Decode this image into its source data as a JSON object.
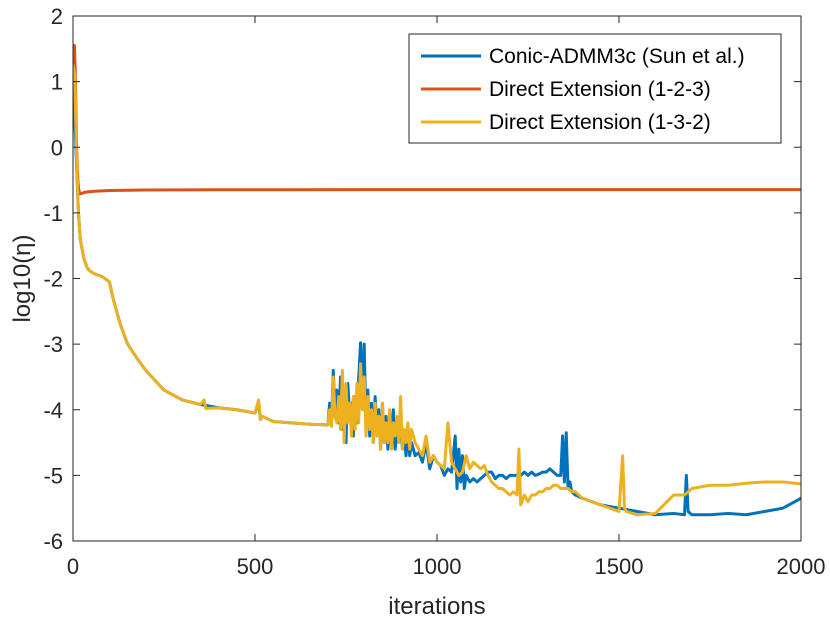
{
  "chart_data": {
    "type": "line",
    "title": "",
    "xlabel": "iterations",
    "ylabel": "log10(η)",
    "xlim": [
      0,
      2000
    ],
    "ylim": [
      -6,
      2
    ],
    "xticks": [
      0,
      500,
      1000,
      1500,
      2000
    ],
    "xtick_labels": [
      "0",
      "500",
      "1000",
      "1500",
      "2000"
    ],
    "yticks": [
      2,
      1,
      0,
      -1,
      -2,
      -3,
      -4,
      -5,
      -6
    ],
    "ytick_labels": [
      "2",
      "1",
      "0",
      "-1",
      "-2",
      "-3",
      "-4",
      "-5",
      "-6"
    ],
    "grid": false,
    "legend_position": "top-right",
    "series": [
      {
        "name": "Conic-ADMM3c (Sun et al.)",
        "color": "#0072BD",
        "x": [
          0,
          5,
          10,
          15,
          20,
          30,
          40,
          50,
          60,
          80,
          100,
          110,
          130,
          150,
          180,
          200,
          250,
          300,
          350,
          400,
          450,
          500,
          510,
          515,
          520,
          550,
          600,
          650,
          700,
          705,
          710,
          715,
          720,
          725,
          730,
          735,
          740,
          745,
          750,
          755,
          760,
          765,
          770,
          775,
          780,
          785,
          790,
          795,
          800,
          805,
          810,
          815,
          820,
          825,
          830,
          835,
          840,
          845,
          850,
          855,
          860,
          865,
          870,
          875,
          880,
          885,
          890,
          895,
          900,
          905,
          910,
          915,
          920,
          925,
          930,
          940,
          950,
          960,
          970,
          980,
          990,
          1000,
          1010,
          1020,
          1030,
          1040,
          1050,
          1055,
          1060,
          1065,
          1070,
          1075,
          1080,
          1090,
          1100,
          1110,
          1120,
          1130,
          1140,
          1150,
          1160,
          1170,
          1180,
          1190,
          1200,
          1210,
          1220,
          1230,
          1240,
          1250,
          1260,
          1270,
          1280,
          1290,
          1300,
          1310,
          1320,
          1330,
          1340,
          1345,
          1350,
          1355,
          1360,
          1365,
          1370,
          1380,
          1400,
          1450,
          1500,
          1550,
          1600,
          1650,
          1680,
          1685,
          1690,
          1700,
          1750,
          1800,
          1850,
          1900,
          1950,
          2000
        ],
        "y": [
          1.3,
          0.4,
          -0.3,
          -1.0,
          -1.4,
          -1.7,
          -1.85,
          -1.9,
          -1.93,
          -1.97,
          -2.05,
          -2.3,
          -2.7,
          -3.0,
          -3.25,
          -3.4,
          -3.7,
          -3.85,
          -3.92,
          -3.97,
          -4.0,
          -4.05,
          -3.9,
          -4.15,
          -4.1,
          -4.18,
          -4.2,
          -4.22,
          -4.23,
          -3.9,
          -4.25,
          -3.4,
          -4.1,
          -3.7,
          -4.2,
          -3.5,
          -4.3,
          -3.8,
          -4.5,
          -3.6,
          -4.1,
          -3.9,
          -4.4,
          -3.8,
          -4.2,
          -3.5,
          -2.98,
          -3.8,
          -3.0,
          -4.3,
          -3.7,
          -4.4,
          -3.9,
          -4.5,
          -3.8,
          -4.3,
          -4.0,
          -4.6,
          -3.9,
          -4.5,
          -4.1,
          -4.6,
          -4.2,
          -4.5,
          -4.0,
          -4.6,
          -4.3,
          -4.5,
          -4.2,
          -4.6,
          -4.4,
          -4.7,
          -4.3,
          -4.7,
          -4.5,
          -4.7,
          -4.65,
          -4.8,
          -4.5,
          -4.9,
          -4.7,
          -4.8,
          -4.85,
          -5.0,
          -4.9,
          -4.95,
          -4.4,
          -5.2,
          -4.6,
          -5.1,
          -4.7,
          -5.2,
          -5.0,
          -5.1,
          -5.05,
          -5.1,
          -5.05,
          -5.0,
          -4.95,
          -4.95,
          -5.05,
          -5.0,
          -5.0,
          -5.05,
          -5.0,
          -5.0,
          -5.0,
          -5.0,
          -4.95,
          -5.0,
          -4.95,
          -5.0,
          -4.98,
          -4.95,
          -4.95,
          -4.9,
          -4.95,
          -5.0,
          -5.0,
          -4.4,
          -5.1,
          -4.35,
          -5.2,
          -5.1,
          -5.25,
          -5.3,
          -5.35,
          -5.45,
          -5.5,
          -5.55,
          -5.6,
          -5.58,
          -5.6,
          -5.0,
          -5.55,
          -5.6,
          -5.6,
          -5.58,
          -5.6,
          -5.55,
          -5.5,
          -5.35
        ]
      },
      {
        "name": "Direct Extension (1-2-3)",
        "color": "#D95319",
        "x": [
          0,
          2,
          4,
          6,
          8,
          10,
          12,
          14,
          16,
          18,
          20,
          25,
          30,
          40,
          60,
          100,
          150,
          200,
          300,
          400,
          600,
          800,
          1000,
          1200,
          1400,
          1600,
          1800,
          2000
        ],
        "y": [
          1.25,
          1.5,
          1.55,
          1.2,
          0.6,
          0.0,
          -0.35,
          -0.55,
          -0.65,
          -0.7,
          -0.71,
          -0.7,
          -0.69,
          -0.68,
          -0.67,
          -0.66,
          -0.655,
          -0.652,
          -0.65,
          -0.648,
          -0.647,
          -0.646,
          -0.645,
          -0.645,
          -0.645,
          -0.645,
          -0.645,
          -0.645
        ]
      },
      {
        "name": "Direct Extension (1-3-2)",
        "color": "#EDB120",
        "x": [
          0,
          5,
          10,
          15,
          20,
          30,
          40,
          50,
          60,
          80,
          100,
          110,
          130,
          150,
          180,
          200,
          250,
          300,
          350,
          360,
          365,
          400,
          450,
          500,
          510,
          515,
          520,
          550,
          600,
          650,
          700,
          705,
          710,
          715,
          720,
          725,
          730,
          735,
          740,
          745,
          750,
          755,
          760,
          765,
          770,
          775,
          780,
          785,
          790,
          795,
          800,
          805,
          810,
          815,
          820,
          825,
          830,
          835,
          840,
          845,
          850,
          855,
          860,
          865,
          870,
          875,
          880,
          885,
          890,
          895,
          900,
          905,
          910,
          915,
          920,
          925,
          930,
          940,
          950,
          960,
          970,
          980,
          990,
          1000,
          1010,
          1020,
          1030,
          1040,
          1050,
          1060,
          1070,
          1080,
          1090,
          1100,
          1110,
          1120,
          1130,
          1140,
          1150,
          1160,
          1170,
          1180,
          1190,
          1200,
          1210,
          1220,
          1225,
          1230,
          1240,
          1250,
          1260,
          1270,
          1280,
          1290,
          1300,
          1310,
          1320,
          1330,
          1340,
          1350,
          1360,
          1370,
          1380,
          1390,
          1400,
          1450,
          1500,
          1510,
          1515,
          1520,
          1550,
          1600,
          1650,
          1680,
          1700,
          1750,
          1800,
          1850,
          1900,
          1950,
          2000
        ],
        "y": [
          1.25,
          1.1,
          -0.2,
          -1.0,
          -1.4,
          -1.7,
          -1.85,
          -1.9,
          -1.93,
          -1.97,
          -2.05,
          -2.3,
          -2.7,
          -3.0,
          -3.25,
          -3.4,
          -3.7,
          -3.85,
          -3.92,
          -3.85,
          -3.98,
          -3.97,
          -4.0,
          -4.05,
          -3.85,
          -4.15,
          -4.1,
          -4.18,
          -4.2,
          -4.22,
          -4.23,
          -4.0,
          -4.25,
          -3.5,
          -4.1,
          -4.2,
          -3.8,
          -4.3,
          -3.4,
          -4.5,
          -3.6,
          -4.2,
          -3.9,
          -4.4,
          -3.8,
          -4.3,
          -3.6,
          -4.2,
          -3.3,
          -4.0,
          -3.5,
          -4.4,
          -3.8,
          -4.3,
          -4.0,
          -4.5,
          -3.9,
          -4.4,
          -4.1,
          -4.6,
          -3.9,
          -4.5,
          -4.2,
          -4.5,
          -4.0,
          -4.6,
          -4.2,
          -4.4,
          -4.1,
          -4.5,
          -3.8,
          -4.6,
          -4.3,
          -4.5,
          -4.2,
          -4.6,
          -4.3,
          -4.5,
          -4.6,
          -4.7,
          -4.4,
          -4.8,
          -4.7,
          -4.8,
          -4.85,
          -4.9,
          -4.2,
          -4.8,
          -4.9,
          -5.0,
          -4.95,
          -4.7,
          -4.9,
          -4.8,
          -4.85,
          -4.9,
          -4.85,
          -5.0,
          -5.1,
          -5.15,
          -5.2,
          -5.2,
          -5.25,
          -5.3,
          -5.25,
          -5.3,
          -4.6,
          -5.45,
          -5.3,
          -5.4,
          -5.3,
          -5.3,
          -5.25,
          -5.25,
          -5.2,
          -5.2,
          -5.15,
          -5.15,
          -5.2,
          -5.2,
          -5.2,
          -5.25,
          -5.25,
          -5.3,
          -5.35,
          -5.45,
          -5.55,
          -4.7,
          -5.5,
          -5.55,
          -5.6,
          -5.58,
          -5.3,
          -5.3,
          -5.2,
          -5.15,
          -5.15,
          -5.12,
          -5.1,
          -5.1,
          -5.13
        ]
      }
    ]
  }
}
